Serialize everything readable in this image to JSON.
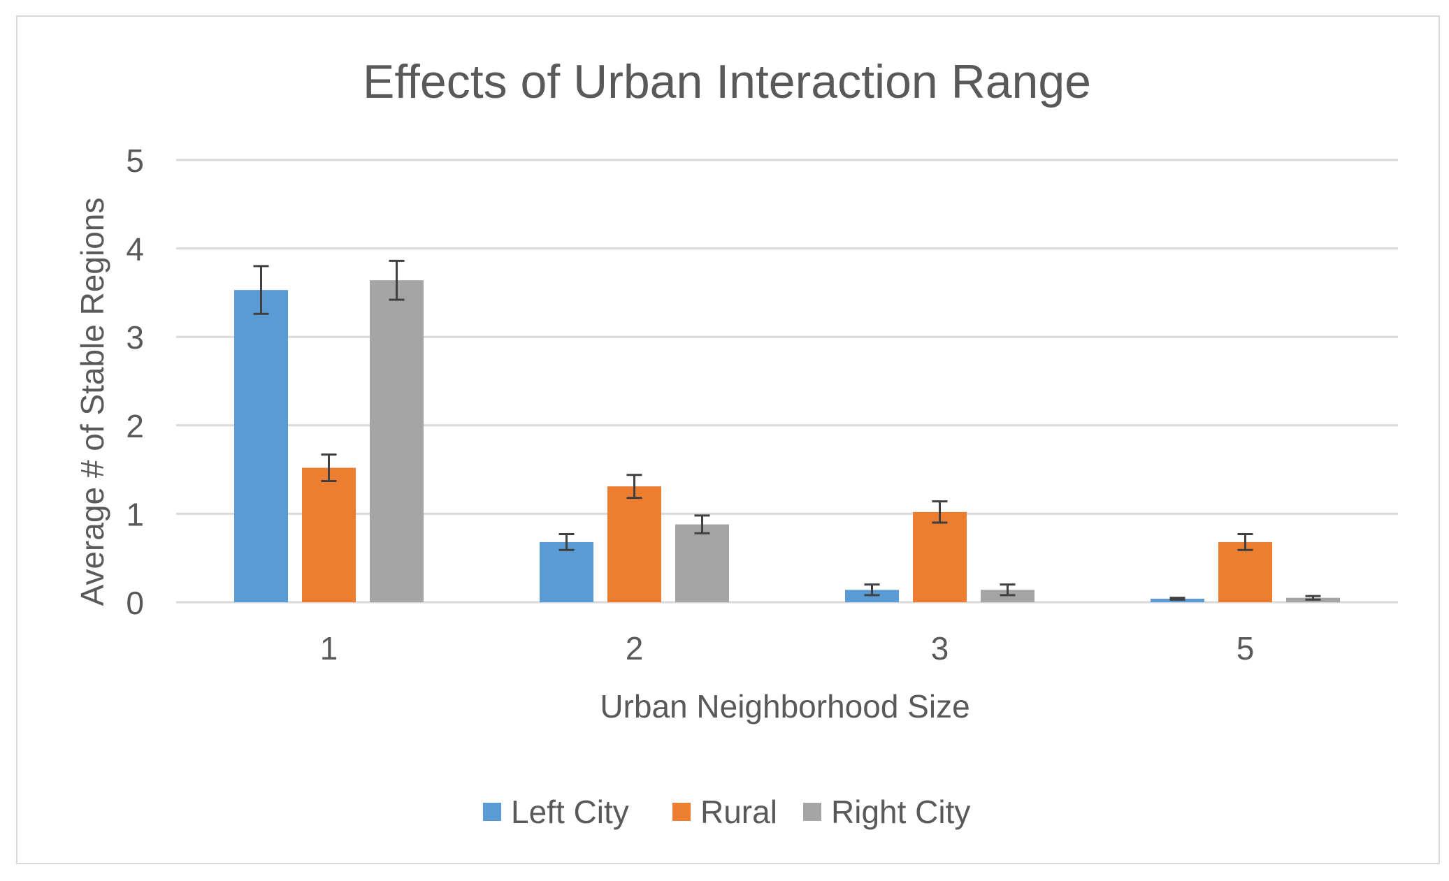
{
  "chart_data": {
    "type": "bar",
    "title": "Effects of Urban Interaction Range",
    "xlabel": "Urban Neighborhood Size",
    "ylabel": "Average # of Stable Regions",
    "categories": [
      "1",
      "2",
      "3",
      "5"
    ],
    "ylim": [
      0,
      5
    ],
    "yticks": [
      0,
      1,
      2,
      3,
      4,
      5
    ],
    "grid": true,
    "legend_position": "bottom",
    "series": [
      {
        "name": "Left City",
        "color": "#5B9BD5",
        "values": [
          3.53,
          0.68,
          0.14,
          0.04
        ],
        "errors": [
          0.27,
          0.09,
          0.06,
          0.01
        ]
      },
      {
        "name": "Rural",
        "color": "#ED7D31",
        "values": [
          1.52,
          1.31,
          1.02,
          0.68
        ],
        "errors": [
          0.15,
          0.13,
          0.12,
          0.09
        ]
      },
      {
        "name": "Right City",
        "color": "#A5A5A5",
        "values": [
          3.64,
          0.88,
          0.14,
          0.05
        ],
        "errors": [
          0.22,
          0.1,
          0.06,
          0.02
        ]
      }
    ]
  }
}
